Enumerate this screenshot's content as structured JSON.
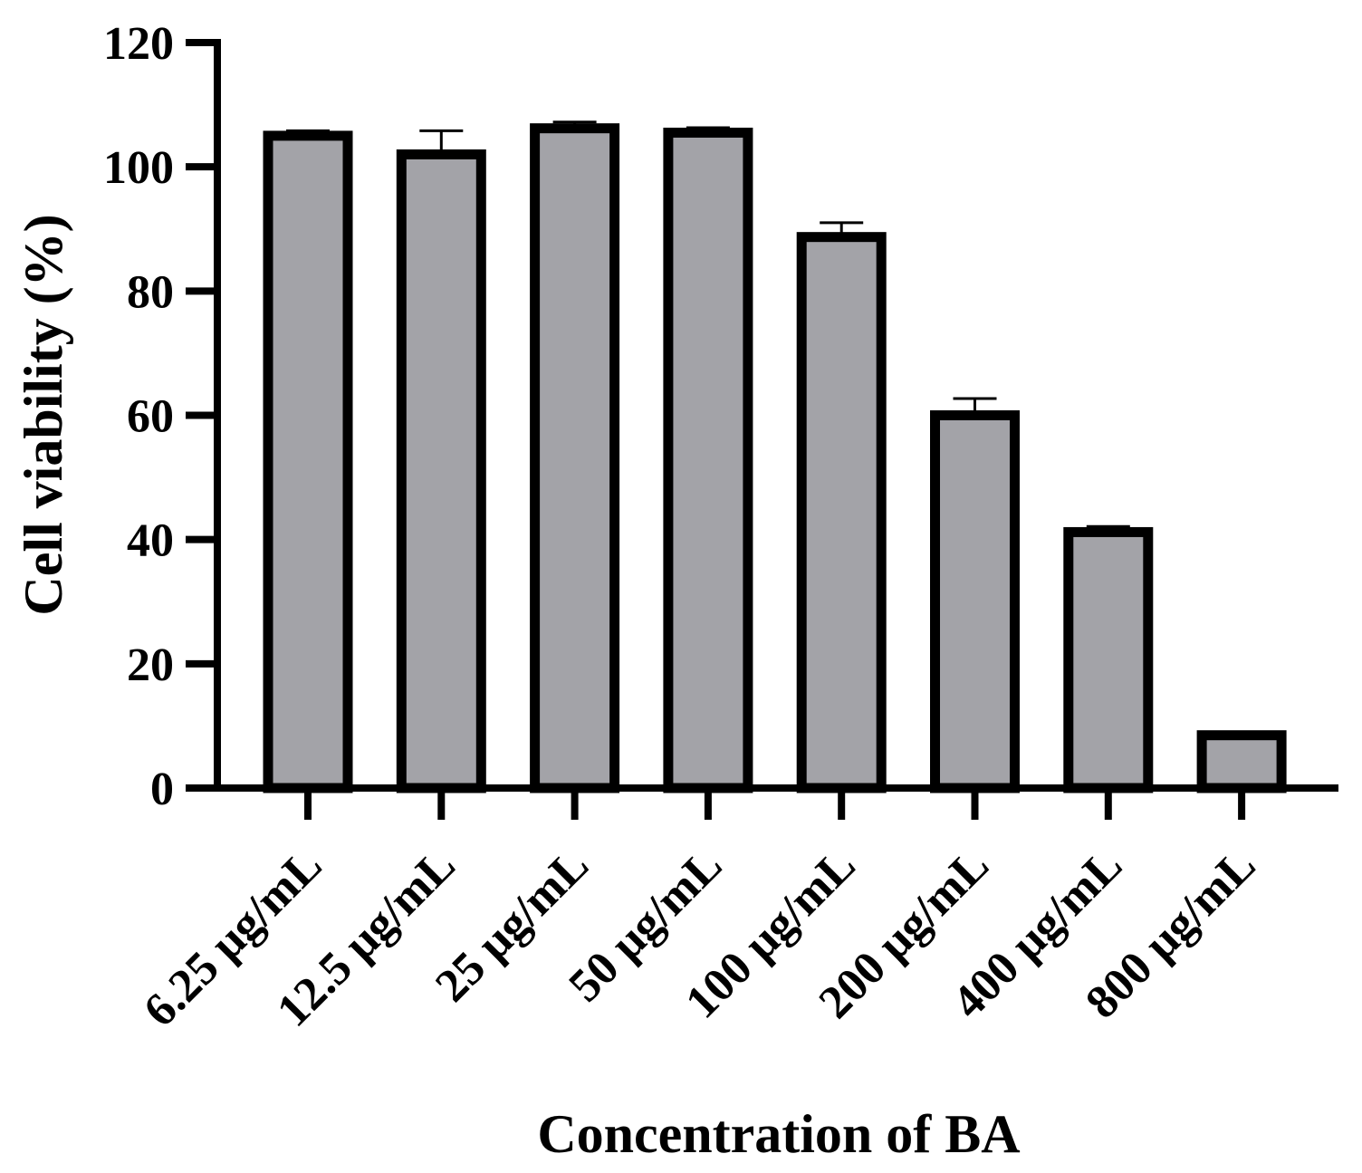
{
  "chart_data": {
    "type": "bar",
    "title": "",
    "xlabel": "Concentration of BA",
    "ylabel": "Cell viability (%)",
    "ylim": [
      0,
      120
    ],
    "yticks": [
      "0",
      "20",
      "40",
      "60",
      "80",
      "100",
      "120"
    ],
    "categories": [
      "6.25 μg/mL",
      "12.5 μg/mL",
      "25 μg/mL",
      "50 μg/mL",
      "100 μg/mL",
      "200 μg/mL",
      "400 μg/mL",
      "800 μg/mL"
    ],
    "values": [
      105,
      102,
      106.2,
      105.5,
      88.7,
      60,
      41.2,
      8.5
    ],
    "errors": [
      0.8,
      3.8,
      1.0,
      0.8,
      2.3,
      2.7,
      0.9,
      0
    ],
    "grid": false,
    "bar_fill": "#a3a3a8",
    "bar_stroke": "#000000"
  }
}
